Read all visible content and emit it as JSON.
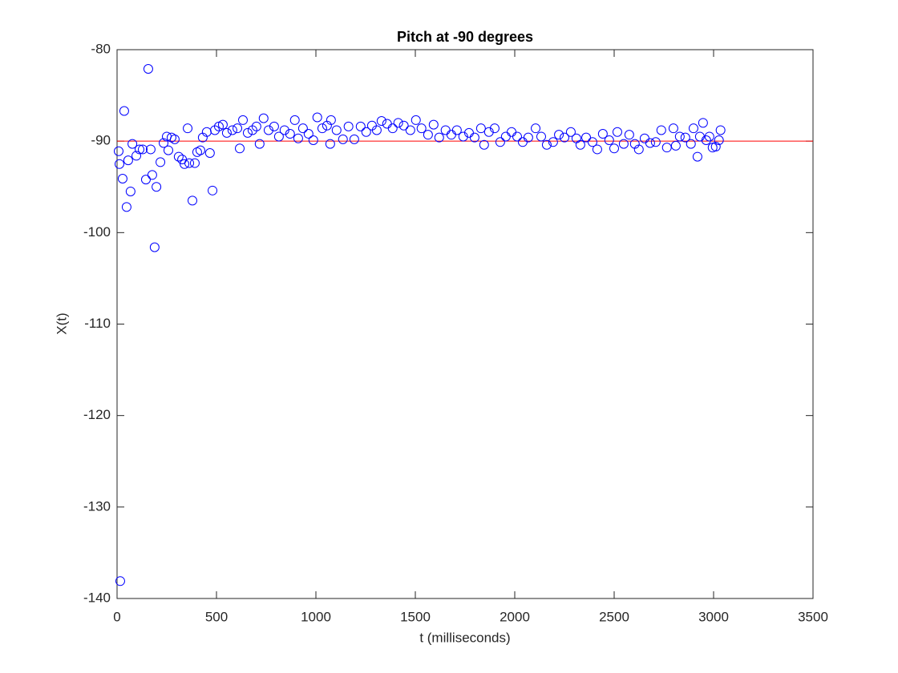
{
  "chart_data": {
    "type": "scatter",
    "title": "Pitch at -90 degrees",
    "x_label": "t (milliseconds)",
    "y_label": "X(t)",
    "marker": "circle",
    "color": "#0000ff",
    "grid": false,
    "reference_line": {
      "value": -90,
      "color": "#ff0000"
    },
    "xlim": [
      0,
      3500
    ],
    "xticks": [
      0,
      500,
      1000,
      1500,
      2000,
      2500,
      3000,
      3500
    ],
    "ylim": [
      -140,
      -80
    ],
    "yticks": [
      -140,
      -130,
      -120,
      -110,
      -100,
      -90,
      -80
    ],
    "x": [
      8,
      16,
      12,
      28,
      36,
      48,
      56,
      68,
      77,
      97,
      113,
      129,
      145,
      157,
      169,
      177,
      189,
      198,
      218,
      234,
      250,
      258,
      274,
      290,
      310,
      327,
      339,
      355,
      363,
      379,
      391,
      403,
      419,
      431,
      451,
      467,
      480,
      492,
      512,
      532,
      552,
      580,
      605,
      617,
      633,
      657,
      681,
      701,
      717,
      737,
      762,
      790,
      814,
      842,
      870,
      894,
      911,
      935,
      963,
      987,
      1007,
      1032,
      1056,
      1072,
      1076,
      1104,
      1136,
      1164,
      1193,
      1225,
      1253,
      1282,
      1306,
      1330,
      1358,
      1386,
      1414,
      1442,
      1475,
      1503,
      1531,
      1564,
      1592,
      1620,
      1652,
      1681,
      1709,
      1741,
      1770,
      1798,
      1830,
      1846,
      1870,
      1899,
      1927,
      1955,
      1984,
      2012,
      2040,
      2068,
      2105,
      2133,
      2161,
      2193,
      2222,
      2250,
      2282,
      2310,
      2330,
      2359,
      2391,
      2415,
      2443,
      2475,
      2500,
      2516,
      2548,
      2576,
      2604,
      2624,
      2653,
      2681,
      2709,
      2737,
      2765,
      2798,
      2810,
      2830,
      2858,
      2886,
      2899,
      2919,
      2931,
      2947,
      2963,
      2979,
      2995,
      3011,
      3027,
      3035
    ],
    "values": [
      -91.1,
      -138.1,
      -92.5,
      -94.1,
      -86.7,
      -97.2,
      -92.1,
      -95.5,
      -90.3,
      -91.6,
      -90.9,
      -90.9,
      -94.2,
      -82.1,
      -90.9,
      -93.7,
      -101.6,
      -95.0,
      -92.3,
      -90.2,
      -89.5,
      -91.0,
      -89.6,
      -89.8,
      -91.7,
      -92.0,
      -92.5,
      -88.6,
      -92.4,
      -96.5,
      -92.4,
      -91.2,
      -91.0,
      -89.6,
      -89.0,
      -91.3,
      -95.4,
      -88.8,
      -88.4,
      -88.2,
      -89.1,
      -88.8,
      -88.6,
      -90.8,
      -87.7,
      -89.1,
      -88.8,
      -88.4,
      -90.3,
      -87.5,
      -88.8,
      -88.4,
      -89.5,
      -88.8,
      -89.2,
      -87.7,
      -89.7,
      -88.6,
      -89.2,
      -89.9,
      -87.4,
      -88.6,
      -88.3,
      -90.3,
      -87.7,
      -88.8,
      -89.8,
      -88.4,
      -89.8,
      -88.4,
      -89.0,
      -88.3,
      -88.8,
      -87.8,
      -88.1,
      -88.6,
      -88.0,
      -88.3,
      -88.8,
      -87.7,
      -88.6,
      -89.3,
      -88.2,
      -89.6,
      -88.8,
      -89.3,
      -88.8,
      -89.5,
      -89.1,
      -89.6,
      -88.6,
      -90.4,
      -89.0,
      -88.6,
      -90.1,
      -89.5,
      -89.0,
      -89.5,
      -90.1,
      -89.6,
      -88.6,
      -89.5,
      -90.4,
      -90.1,
      -89.3,
      -89.6,
      -89.0,
      -89.7,
      -90.4,
      -89.6,
      -90.1,
      -90.9,
      -89.2,
      -89.9,
      -90.8,
      -89.0,
      -90.3,
      -89.3,
      -90.3,
      -90.9,
      -89.7,
      -90.2,
      -90.1,
      -88.8,
      -90.7,
      -88.6,
      -90.5,
      -89.5,
      -89.6,
      -90.3,
      -88.6,
      -91.7,
      -89.5,
      -88.0,
      -89.9,
      -89.5,
      -90.7,
      -90.6,
      -89.9,
      -88.8
    ]
  }
}
